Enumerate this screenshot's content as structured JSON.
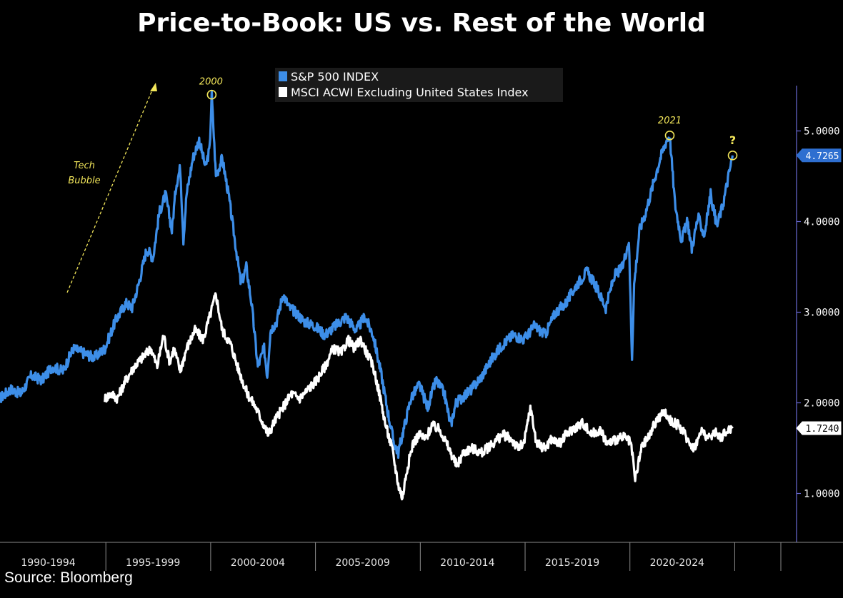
{
  "chart_data": {
    "type": "line",
    "title": "Price-to-Book: US vs. Rest of the World",
    "xlabel": "",
    "ylabel": "",
    "x_categories": [
      "1990-1994",
      "1995-1999",
      "2000-2004",
      "2005-2009",
      "2010-2014",
      "2015-2019",
      "2020-2024"
    ],
    "xlim": [
      1990.0,
      2028.0
    ],
    "ylim": [
      0.5,
      5.5
    ],
    "y_ticks": [
      "1.0000",
      "2.0000",
      "3.0000",
      "4.0000",
      "5.0000"
    ],
    "y_tick_values": [
      1.0,
      2.0,
      3.0,
      4.0,
      5.0
    ],
    "legend": [
      "S&P 500 INDEX",
      "MSCI ACWI Excluding United States Index"
    ],
    "last_values": [
      "4.7265",
      "1.7240"
    ],
    "series": [
      {
        "name": "S&P 500 INDEX",
        "color": "#3d8ee8",
        "x": [
          1990.0,
          1990.5,
          1991.0,
          1991.5,
          1992.0,
          1992.5,
          1993.0,
          1993.5,
          1994.0,
          1994.5,
          1995.0,
          1995.5,
          1996.0,
          1996.3,
          1996.6,
          1997.0,
          1997.3,
          1997.6,
          1997.9,
          1998.2,
          1998.4,
          1998.6,
          1998.75,
          1998.9,
          1999.2,
          1999.5,
          1999.8,
          2000.0,
          2000.1,
          2000.3,
          2000.6,
          2000.9,
          2001.2,
          2001.5,
          2001.75,
          2002.0,
          2002.3,
          2002.6,
          2002.75,
          2002.9,
          2003.2,
          2003.5,
          2003.8,
          2004.1,
          2004.5,
          2005.0,
          2005.5,
          2006.0,
          2006.5,
          2007.0,
          2007.4,
          2007.8,
          2008.2,
          2008.5,
          2008.8,
          2009.0,
          2009.2,
          2009.6,
          2010.0,
          2010.4,
          2010.8,
          2011.2,
          2011.5,
          2011.75,
          2012.0,
          2012.5,
          2013.0,
          2013.5,
          2014.0,
          2014.5,
          2015.0,
          2015.5,
          2016.0,
          2016.5,
          2017.0,
          2017.5,
          2018.0,
          2018.4,
          2018.9,
          2019.3,
          2019.7,
          2020.0,
          2020.15,
          2020.25,
          2020.5,
          2020.8,
          2021.2,
          2021.5,
          2021.8,
          2021.95,
          2022.2,
          2022.5,
          2022.8,
          2023.0,
          2023.3,
          2023.6,
          2023.9,
          2024.2,
          2024.5,
          2024.75,
          2024.95
        ],
        "y": [
          2.05,
          2.15,
          2.1,
          2.3,
          2.25,
          2.4,
          2.35,
          2.6,
          2.55,
          2.5,
          2.6,
          2.9,
          3.1,
          3.05,
          3.3,
          3.7,
          3.6,
          4.1,
          4.3,
          3.9,
          4.4,
          4.6,
          3.8,
          4.3,
          4.7,
          4.9,
          4.6,
          4.8,
          5.4,
          4.5,
          4.7,
          4.3,
          3.8,
          3.3,
          3.5,
          3.1,
          2.4,
          2.6,
          2.3,
          2.8,
          2.9,
          3.2,
          3.05,
          3.0,
          2.9,
          2.85,
          2.75,
          2.85,
          2.95,
          2.8,
          2.95,
          2.75,
          2.3,
          1.9,
          1.55,
          1.45,
          1.65,
          2.05,
          2.2,
          1.95,
          2.25,
          2.1,
          1.75,
          2.0,
          2.05,
          2.15,
          2.3,
          2.5,
          2.65,
          2.75,
          2.7,
          2.85,
          2.75,
          3.0,
          3.1,
          3.3,
          3.45,
          3.3,
          3.05,
          3.4,
          3.5,
          3.8,
          2.5,
          3.3,
          3.9,
          4.1,
          4.45,
          4.7,
          4.9,
          4.95,
          4.2,
          3.8,
          4.0,
          3.7,
          4.05,
          3.85,
          4.3,
          3.95,
          4.2,
          4.5,
          4.73
        ]
      },
      {
        "name": "MSCI ACWI Excluding United States Index",
        "color": "#ffffff",
        "x": [
          1995.0,
          1995.3,
          1995.6,
          1996.0,
          1996.4,
          1996.8,
          1997.2,
          1997.5,
          1997.8,
          1998.1,
          1998.3,
          1998.6,
          1998.9,
          1999.3,
          1999.7,
          2000.0,
          2000.3,
          2000.6,
          2001.0,
          2001.4,
          2001.8,
          2002.2,
          2002.6,
          2002.8,
          2003.1,
          2003.5,
          2003.9,
          2004.3,
          2004.7,
          2005.1,
          2005.5,
          2005.9,
          2006.3,
          2006.6,
          2006.9,
          2007.2,
          2007.5,
          2007.8,
          2008.1,
          2008.4,
          2008.7,
          2009.0,
          2009.2,
          2009.4,
          2009.7,
          2010.0,
          2010.3,
          2010.6,
          2011.0,
          2011.4,
          2011.8,
          2012.1,
          2012.5,
          2013.0,
          2013.5,
          2014.0,
          2014.4,
          2014.7,
          2015.0,
          2015.3,
          2015.6,
          2016.0,
          2016.3,
          2016.7,
          2017.0,
          2017.4,
          2017.8,
          2018.2,
          2018.6,
          2019.0,
          2019.4,
          2019.8,
          2020.1,
          2020.3,
          2020.6,
          2021.0,
          2021.3,
          2021.7,
          2022.0,
          2022.4,
          2022.8,
          2023.1,
          2023.5,
          2023.8,
          2024.1,
          2024.4,
          2024.7,
          2024.95
        ],
        "y": [
          2.05,
          2.1,
          2.05,
          2.25,
          2.4,
          2.5,
          2.6,
          2.4,
          2.75,
          2.45,
          2.6,
          2.35,
          2.6,
          2.8,
          2.7,
          2.95,
          3.2,
          2.8,
          2.65,
          2.35,
          2.1,
          1.95,
          1.75,
          1.65,
          1.8,
          1.95,
          2.1,
          2.05,
          2.15,
          2.25,
          2.4,
          2.6,
          2.55,
          2.7,
          2.6,
          2.7,
          2.55,
          2.4,
          2.1,
          1.75,
          1.5,
          1.1,
          0.95,
          1.25,
          1.55,
          1.65,
          1.6,
          1.75,
          1.7,
          1.5,
          1.3,
          1.45,
          1.5,
          1.45,
          1.55,
          1.65,
          1.6,
          1.5,
          1.55,
          1.95,
          1.55,
          1.5,
          1.6,
          1.55,
          1.65,
          1.72,
          1.78,
          1.65,
          1.7,
          1.55,
          1.6,
          1.62,
          1.55,
          1.15,
          1.5,
          1.65,
          1.8,
          1.9,
          1.8,
          1.75,
          1.6,
          1.5,
          1.7,
          1.6,
          1.68,
          1.62,
          1.7,
          1.72
        ]
      }
    ],
    "annotations": [
      {
        "text": "2000",
        "x": 2000.1,
        "y": 5.4
      },
      {
        "text": "2021",
        "x": 2021.95,
        "y": 4.95
      },
      {
        "text": "?",
        "x": 2024.95,
        "y": 4.73
      },
      {
        "text": "Tech",
        "x": 1992.0,
        "y": 4.5
      },
      {
        "text": "Bubble",
        "x": 1992.0,
        "y": 4.35
      }
    ]
  },
  "source": "Source: Bloomberg"
}
